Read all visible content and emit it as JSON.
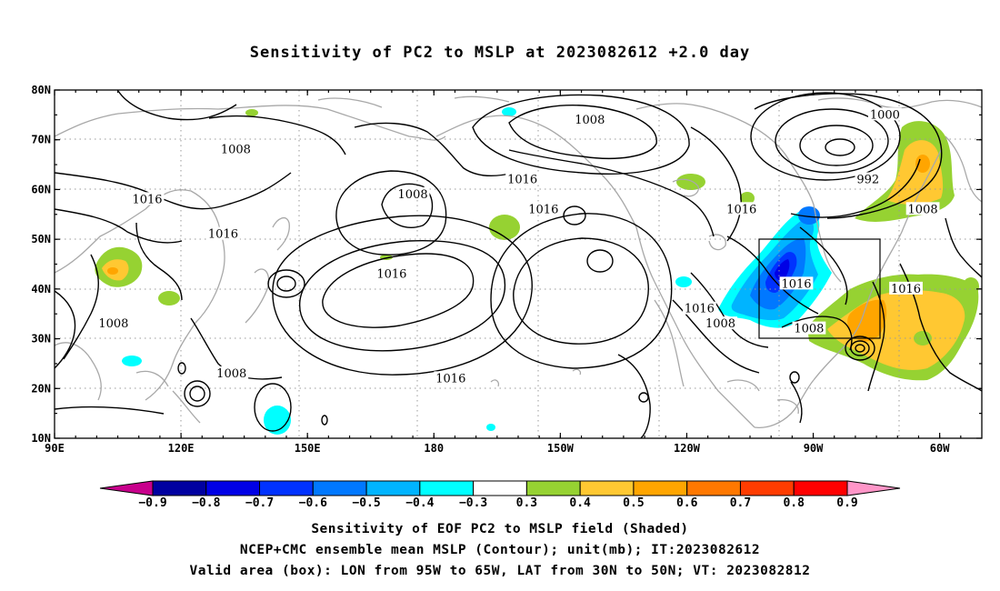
{
  "title": "Sensitivity of PC2 to MSLP at 2023082612 +2.0 day",
  "map": {
    "lon_ticks": [
      "90E",
      "120E",
      "150E",
      "180",
      "150W",
      "120W",
      "90W",
      "60W"
    ],
    "lat_ticks": [
      "80N",
      "70N",
      "60N",
      "50N",
      "40N",
      "30N",
      "20N",
      "10N"
    ],
    "lon_range": [
      90,
      310
    ],
    "lat_range": [
      10,
      80
    ],
    "valid_box": {
      "lon": [
        265,
        295
      ],
      "lat": [
        30,
        50
      ]
    },
    "contour_labels": [
      {
        "text": "1008",
        "lon": 133,
        "lat": 68
      },
      {
        "text": "1008",
        "lon": 217,
        "lat": 74
      },
      {
        "text": "1000",
        "lon": 287,
        "lat": 75
      },
      {
        "text": "992",
        "lon": 283,
        "lat": 62
      },
      {
        "text": "1016",
        "lon": 201,
        "lat": 62
      },
      {
        "text": "1016",
        "lon": 112,
        "lat": 58
      },
      {
        "text": "1008",
        "lon": 175,
        "lat": 59
      },
      {
        "text": "1016",
        "lon": 206,
        "lat": 56
      },
      {
        "text": "1016",
        "lon": 253,
        "lat": 56
      },
      {
        "text": "1008",
        "lon": 296,
        "lat": 56
      },
      {
        "text": "1016",
        "lon": 130,
        "lat": 51
      },
      {
        "text": "1016",
        "lon": 170,
        "lat": 43
      },
      {
        "text": "1016",
        "lon": 266,
        "lat": 41
      },
      {
        "text": "1016",
        "lon": 292,
        "lat": 40
      },
      {
        "text": "1016",
        "lon": 243,
        "lat": 36
      },
      {
        "text": "1008",
        "lon": 248,
        "lat": 33
      },
      {
        "text": "1008",
        "lon": 104,
        "lat": 33
      },
      {
        "text": "1008",
        "lon": 269,
        "lat": 32
      },
      {
        "text": "1008",
        "lon": 132,
        "lat": 23
      },
      {
        "text": "1016",
        "lon": 184,
        "lat": 22
      }
    ]
  },
  "colorbar": {
    "labels": [
      "−0.9",
      "−0.8",
      "−0.7",
      "−0.6",
      "−0.5",
      "−0.4",
      "−0.3",
      "0.3",
      "0.4",
      "0.5",
      "0.6",
      "0.7",
      "0.8",
      "0.9"
    ],
    "colors": {
      "lt_neg09": "#c8008c",
      "neg09": "#0000a0",
      "neg08": "#0000e6",
      "neg07": "#0032ff",
      "neg06": "#0078ff",
      "neg05": "#00b4ff",
      "neg04": "#00ffff",
      "neutral": "#ffffff",
      "pos03": "#96d232",
      "pos04": "#ffc832",
      "pos05": "#ffa500",
      "pos06": "#ff7800",
      "pos07": "#ff3c00",
      "pos08": "#ff0000",
      "gt_pos09": "#ff96c8"
    }
  },
  "captions": {
    "line1": "Sensitivity of EOF PC2 to MSLP field (Shaded)",
    "line2": "NCEP+CMC ensemble mean MSLP (Contour); unit(mb); IT:2023082612",
    "line3": "Valid area (box): LON from 95W to 65W, LAT from 30N to 50N; VT: 2023082812"
  }
}
